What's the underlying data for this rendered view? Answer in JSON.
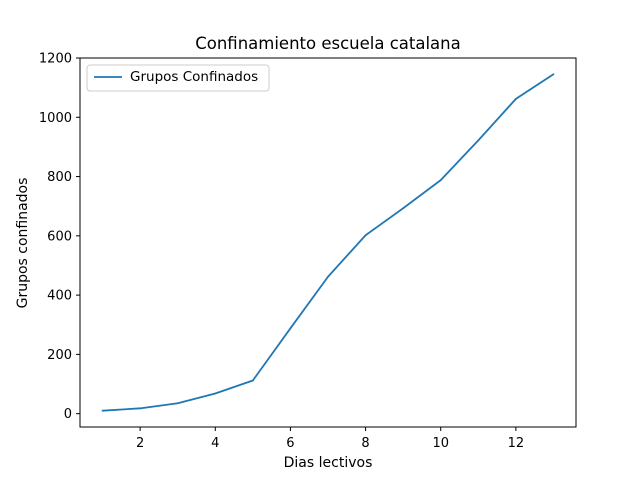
{
  "chart_data": {
    "type": "line",
    "title": "Confinamiento escuela catalana",
    "xlabel": "Dias lectivos",
    "ylabel": "Grupos confinados",
    "x": [
      1,
      2,
      3,
      4,
      5,
      6,
      7,
      8,
      9,
      10,
      11,
      12,
      13
    ],
    "series": [
      {
        "name": "Grupos Confinados",
        "color": "#1f77b4",
        "values": [
          10,
          18,
          35,
          68,
          112,
          288,
          462,
          602,
          693,
          788,
          922,
          1062,
          1145
        ]
      }
    ],
    "xlim": [
      0.4,
      13.6
    ],
    "ylim": [
      -45,
      1200
    ],
    "xticks": [
      2,
      4,
      6,
      8,
      10,
      12
    ],
    "yticks": [
      0,
      200,
      400,
      600,
      800,
      1000,
      1200
    ],
    "xtick_labels": [
      "2",
      "4",
      "6",
      "8",
      "10",
      "12"
    ],
    "ytick_labels": [
      "0",
      "200",
      "400",
      "600",
      "800",
      "1000",
      "1200"
    ],
    "grid": false,
    "legend_position": "upper-left"
  }
}
